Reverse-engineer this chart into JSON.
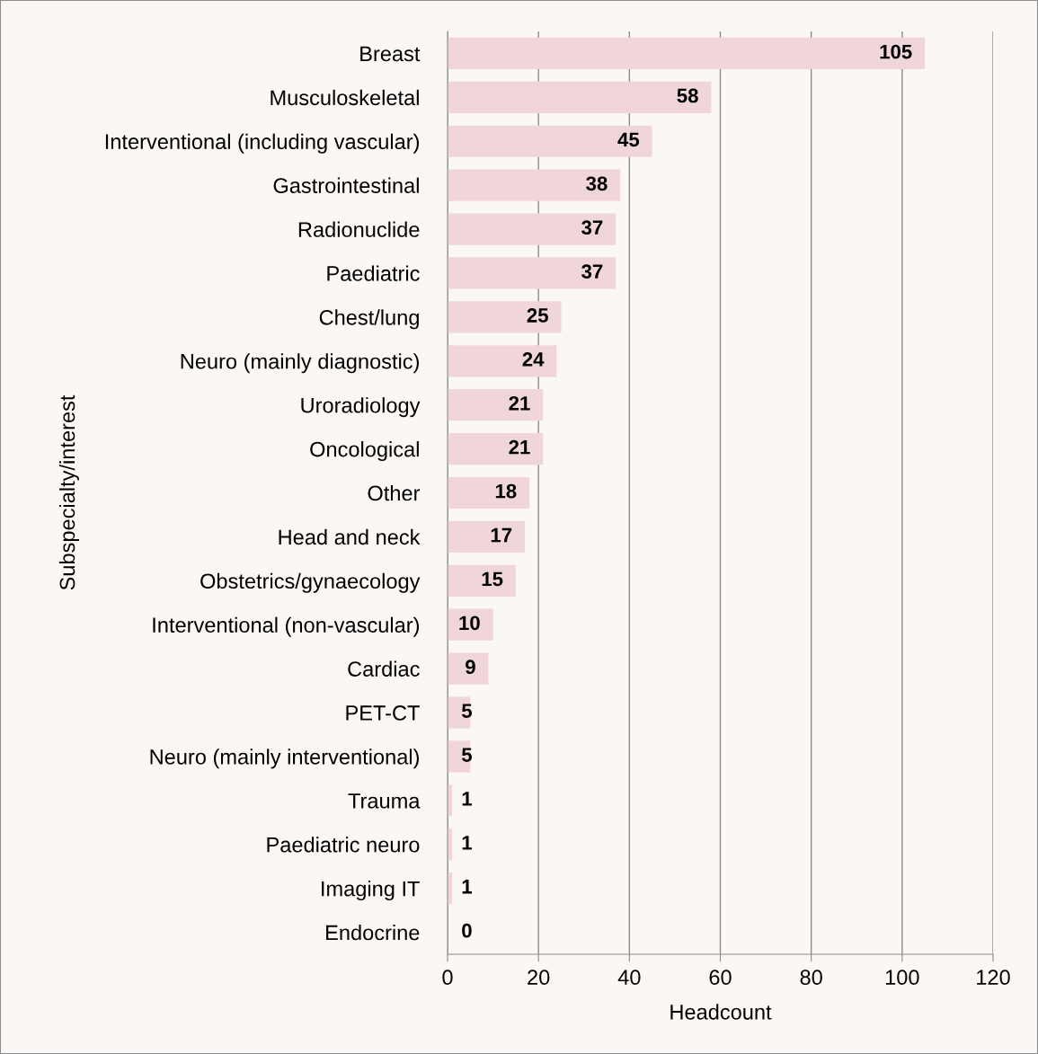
{
  "chart_data": {
    "type": "bar",
    "orientation": "horizontal",
    "xlabel": "Headcount",
    "ylabel": "Subspecialty/interest",
    "categories": [
      "Breast",
      "Musculoskeletal",
      "Interventional (including vascular)",
      "Gastrointestinal",
      "Radionuclide",
      "Paediatric",
      "Chest/lung",
      "Neuro (mainly diagnostic)",
      "Uroradiology",
      "Oncological",
      "Other",
      "Head and neck",
      "Obstetrics/gynaecology",
      "Interventional (non-vascular)",
      "Cardiac",
      "PET-CT",
      "Neuro (mainly interventional)",
      "Trauma",
      "Paediatric neuro",
      "Imaging IT",
      "Endocrine"
    ],
    "values": [
      105,
      58,
      45,
      38,
      37,
      37,
      25,
      24,
      21,
      21,
      18,
      17,
      15,
      10,
      9,
      5,
      5,
      1,
      1,
      1,
      0
    ],
    "color": "#f0d6db",
    "xlim": [
      0,
      120
    ],
    "xticks": [
      0,
      20,
      40,
      60,
      80,
      100,
      120
    ],
    "grid": "x",
    "data_labels": true,
    "legend": false
  }
}
